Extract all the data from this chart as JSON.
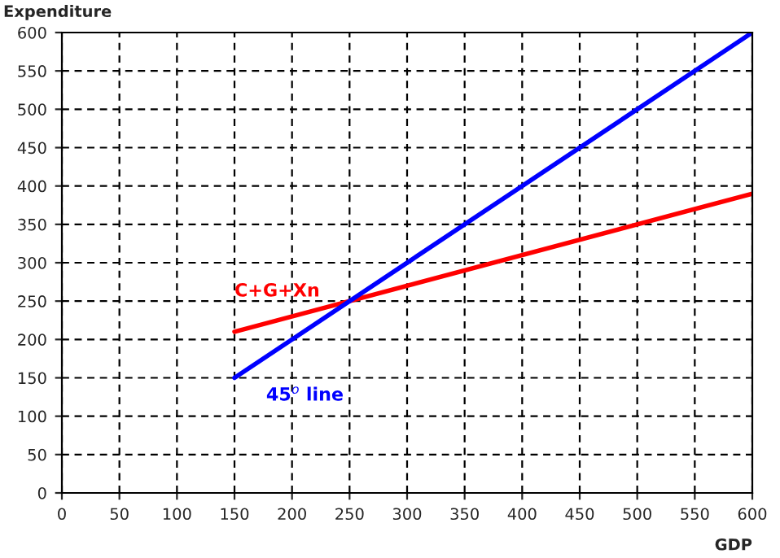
{
  "chart_data": {
    "type": "line",
    "xlabel": "GDP",
    "ylabel": "Expenditure",
    "xlim": [
      0,
      600
    ],
    "ylim": [
      0,
      600
    ],
    "xticks": [
      0,
      50,
      100,
      150,
      200,
      250,
      300,
      350,
      400,
      450,
      500,
      550,
      600
    ],
    "yticks": [
      0,
      50,
      100,
      150,
      200,
      250,
      300,
      350,
      400,
      450,
      500,
      550,
      600
    ],
    "grid": true,
    "line_style": "solid",
    "x": [
      150,
      600
    ],
    "series": [
      {
        "name": "C+G+Xn",
        "color": "#ff0000",
        "values": [
          210,
          390
        ]
      },
      {
        "name": "45$^{o}$ line",
        "color": "#0000ff",
        "values": [
          150,
          600
        ]
      }
    ]
  }
}
